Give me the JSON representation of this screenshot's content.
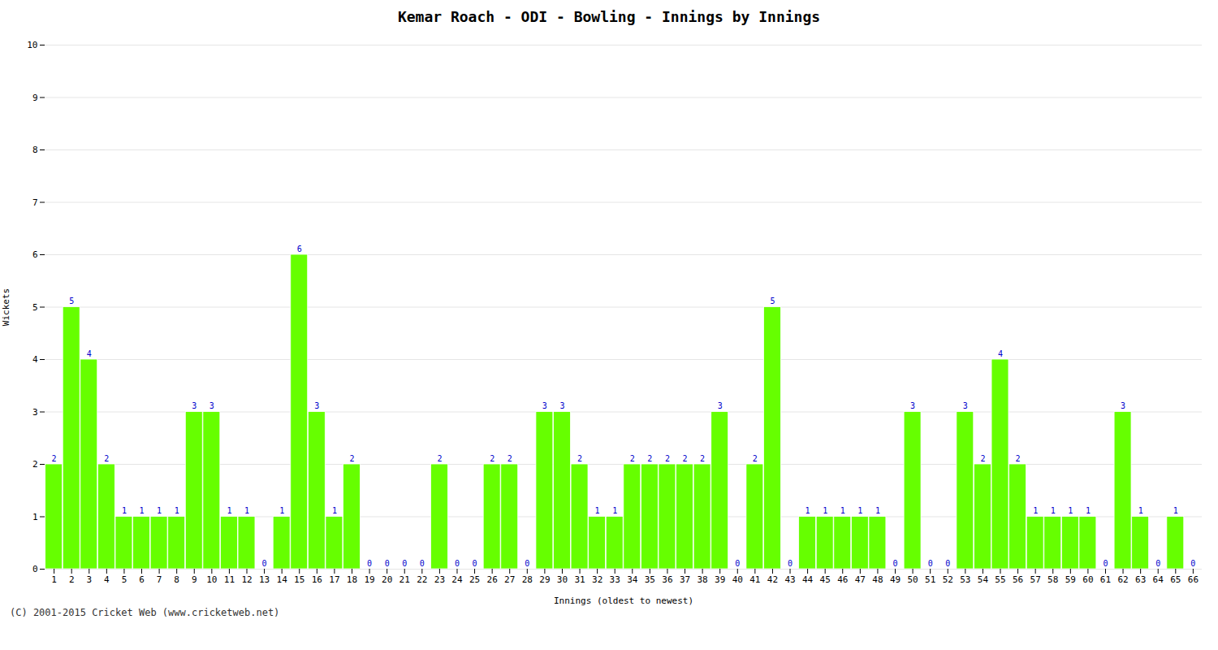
{
  "chart_data": {
    "type": "bar",
    "title": "Kemar Roach - ODI - Bowling - Innings by Innings",
    "xlabel": "Innings (oldest to newest)",
    "ylabel": "Wickets",
    "caption": "(C) 2001-2015 Cricket Web (www.cricketweb.net)",
    "categories": [
      "1",
      "2",
      "3",
      "4",
      "5",
      "6",
      "7",
      "8",
      "9",
      "10",
      "11",
      "12",
      "13",
      "14",
      "15",
      "16",
      "17",
      "18",
      "19",
      "20",
      "21",
      "22",
      "23",
      "24",
      "25",
      "26",
      "27",
      "28",
      "29",
      "30",
      "31",
      "32",
      "33",
      "34",
      "35",
      "36",
      "37",
      "38",
      "39",
      "40",
      "41",
      "42",
      "43",
      "44",
      "45",
      "46",
      "47",
      "48",
      "49",
      "50",
      "51",
      "52",
      "53",
      "54",
      "55",
      "56",
      "57",
      "58",
      "59",
      "60",
      "61",
      "62",
      "63",
      "64",
      "65",
      "66"
    ],
    "values": [
      2,
      5,
      4,
      2,
      1,
      1,
      1,
      1,
      3,
      3,
      1,
      1,
      0,
      1,
      6,
      3,
      1,
      2,
      0,
      0,
      0,
      0,
      2,
      0,
      0,
      2,
      2,
      0,
      3,
      3,
      2,
      1,
      1,
      2,
      2,
      2,
      2,
      2,
      3,
      0,
      2,
      5,
      0,
      1,
      1,
      1,
      1,
      1,
      0,
      3,
      0,
      0,
      3,
      2,
      4,
      2,
      1,
      1,
      1,
      1,
      0,
      3,
      1,
      0,
      1,
      0
    ],
    "color": "#66ff00",
    "ylim": [
      0,
      10
    ],
    "yticks": [
      0,
      1,
      2,
      3,
      4,
      5,
      6,
      7,
      8,
      9,
      10
    ],
    "grid": true,
    "data_labels": true
  }
}
